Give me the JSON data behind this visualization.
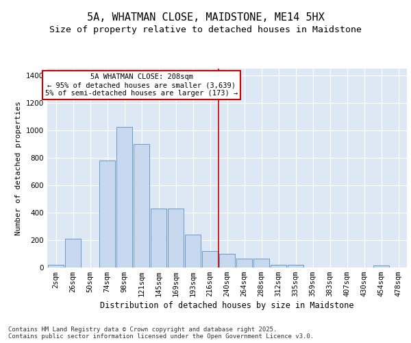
{
  "title": "5A, WHATMAN CLOSE, MAIDSTONE, ME14 5HX",
  "subtitle": "Size of property relative to detached houses in Maidstone",
  "xlabel": "Distribution of detached houses by size in Maidstone",
  "ylabel": "Number of detached properties",
  "bar_color": "#c8d8ee",
  "bar_edge_color": "#6699cc",
  "background_color": "#dde8f4",
  "grid_color": "#ffffff",
  "categories": [
    "2sqm",
    "26sqm",
    "50sqm",
    "74sqm",
    "98sqm",
    "121sqm",
    "145sqm",
    "169sqm",
    "193sqm",
    "216sqm",
    "240sqm",
    "264sqm",
    "288sqm",
    "312sqm",
    "335sqm",
    "359sqm",
    "383sqm",
    "407sqm",
    "430sqm",
    "454sqm",
    "478sqm"
  ],
  "values": [
    20,
    210,
    0,
    780,
    1025,
    900,
    430,
    430,
    240,
    120,
    100,
    65,
    65,
    20,
    20,
    0,
    0,
    0,
    0,
    15,
    0
  ],
  "ylim": [
    0,
    1450
  ],
  "yticks": [
    0,
    200,
    400,
    600,
    800,
    1000,
    1200,
    1400
  ],
  "property_line_x": 9.5,
  "annotation_text": "5A WHATMAN CLOSE: 208sqm\n← 95% of detached houses are smaller (3,639)\n5% of semi-detached houses are larger (173) →",
  "annotation_box_color": "#ffffff",
  "annotation_border_color": "#cc0000",
  "vertical_line_color": "#cc0000",
  "footer_text": "Contains HM Land Registry data © Crown copyright and database right 2025.\nContains public sector information licensed under the Open Government Licence v3.0.",
  "title_fontsize": 11,
  "subtitle_fontsize": 9.5,
  "annotation_fontsize": 7.5,
  "ylabel_fontsize": 8,
  "xlabel_fontsize": 8.5,
  "footer_fontsize": 6.5,
  "tick_fontsize": 7.5
}
